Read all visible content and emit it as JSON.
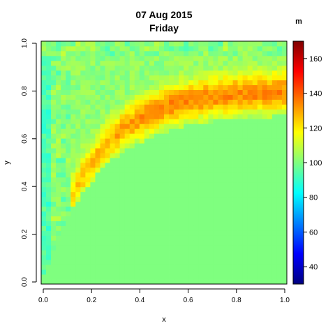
{
  "chart_data": {
    "type": "heatmap",
    "title": "07 Aug 2015",
    "subtitle": "Friday",
    "xlabel": "x",
    "ylabel": "y",
    "xlim": [
      0,
      1
    ],
    "ylim": [
      0,
      1
    ],
    "x_ticks": [
      "0.0",
      "0.2",
      "0.4",
      "0.6",
      "0.8",
      "1.0"
    ],
    "y_ticks": [
      "0.0",
      "0.2",
      "0.4",
      "0.6",
      "0.8",
      "1.0"
    ],
    "grid": 50,
    "colorbar": {
      "label": "m",
      "min": 30,
      "max": 170,
      "ticks": [
        "40",
        "60",
        "80",
        "100",
        "120",
        "140",
        "160"
      ],
      "colors": [
        "#00007f",
        "#0000ff",
        "#007fff",
        "#00ffff",
        "#7fff7f",
        "#ffff00",
        "#ff7f00",
        "#ff0000",
        "#7f0000"
      ]
    },
    "surface": {
      "background_value": 100,
      "curve": "y = 0.7 * (1 - exp(-4.5 * x))",
      "ridge_peak": 140,
      "ridge_curve": "y = 0.8 * (1 - exp(-4.8 * x))",
      "left_edge_value": 92
    }
  }
}
